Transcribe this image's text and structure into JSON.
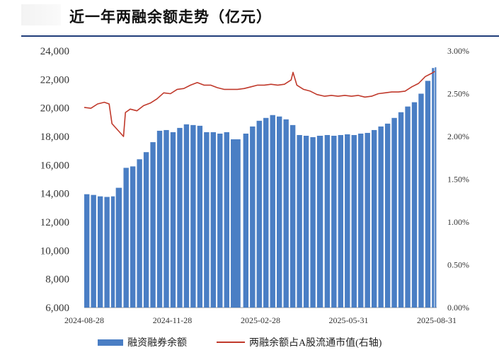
{
  "header": {
    "title": "近一年两融余额走势（亿元）"
  },
  "colors": {
    "bars": "#4a7ec4",
    "line": "#c0392b",
    "rule": "#1f3d7a"
  },
  "chart_data": {
    "type": "bar+line",
    "x_start": "2024-08-28",
    "x_end": "2025-08-31",
    "x_tick_labels": [
      "2024-08-28",
      "2024-11-28",
      "2025-02-28",
      "2025-05-31",
      "2025-08-31"
    ],
    "y_left": {
      "range": [
        6000,
        24000
      ],
      "tick_labels": [
        "6,000",
        "8,000",
        "10,000",
        "12,000",
        "14,000",
        "16,000",
        "18,000",
        "20,000",
        "22,000",
        "24,000"
      ]
    },
    "y_right": {
      "range": [
        0,
        3.0
      ],
      "unit": "%",
      "tick_labels": [
        "0.00%",
        "0.50%",
        "1.00%",
        "1.50%",
        "2.00%",
        "2.50%",
        "3.00%"
      ]
    },
    "series": [
      {
        "name": "融资融券余额",
        "type": "bar",
        "axis": "left",
        "points": [
          [
            "2024-08-28",
            13950
          ],
          [
            "2024-09-04",
            13900
          ],
          [
            "2024-09-11",
            13800
          ],
          [
            "2024-09-18",
            13760
          ],
          [
            "2024-09-25",
            13800
          ],
          [
            "2024-09-30",
            14400
          ],
          [
            "2024-10-08",
            15800
          ],
          [
            "2024-10-15",
            15900
          ],
          [
            "2024-10-22",
            16400
          ],
          [
            "2024-10-29",
            16900
          ],
          [
            "2024-11-05",
            17600
          ],
          [
            "2024-11-12",
            18400
          ],
          [
            "2024-11-19",
            18450
          ],
          [
            "2024-11-26",
            18300
          ],
          [
            "2024-12-03",
            18600
          ],
          [
            "2024-12-10",
            18850
          ],
          [
            "2024-12-17",
            18800
          ],
          [
            "2024-12-24",
            18750
          ],
          [
            "2024-12-31",
            18300
          ],
          [
            "2025-01-07",
            18300
          ],
          [
            "2025-01-14",
            18200
          ],
          [
            "2025-01-21",
            18300
          ],
          [
            "2025-01-28",
            17800
          ],
          [
            "2025-02-10",
            18200
          ],
          [
            "2025-02-17",
            18700
          ],
          [
            "2025-02-24",
            19100
          ],
          [
            "2025-03-03",
            19300
          ],
          [
            "2025-03-10",
            19500
          ],
          [
            "2025-03-17",
            19400
          ],
          [
            "2025-03-24",
            19200
          ],
          [
            "2025-03-31",
            18800
          ],
          [
            "2025-04-07",
            18100
          ],
          [
            "2025-04-14",
            18050
          ],
          [
            "2025-04-21",
            17950
          ],
          [
            "2025-04-28",
            18050
          ],
          [
            "2025-05-06",
            18100
          ],
          [
            "2025-05-13",
            18050
          ],
          [
            "2025-05-20",
            18100
          ],
          [
            "2025-05-27",
            18150
          ],
          [
            "2025-06-03",
            18100
          ],
          [
            "2025-06-10",
            18200
          ],
          [
            "2025-06-17",
            18250
          ],
          [
            "2025-06-24",
            18450
          ],
          [
            "2025-07-01",
            18700
          ],
          [
            "2025-07-08",
            18900
          ],
          [
            "2025-07-15",
            19300
          ],
          [
            "2025-07-22",
            19700
          ],
          [
            "2025-07-29",
            20100
          ],
          [
            "2025-08-05",
            20400
          ],
          [
            "2025-08-12",
            21000
          ],
          [
            "2025-08-19",
            21900
          ],
          [
            "2025-08-26",
            22800
          ],
          [
            "2025-08-29",
            22850
          ]
        ]
      },
      {
        "name": "两融余额占A股流通市值(右轴)",
        "type": "line",
        "axis": "right",
        "points": [
          [
            "2024-08-28",
            2.34
          ],
          [
            "2024-09-04",
            2.33
          ],
          [
            "2024-09-11",
            2.38
          ],
          [
            "2024-09-18",
            2.4
          ],
          [
            "2024-09-23",
            2.38
          ],
          [
            "2024-09-26",
            2.15
          ],
          [
            "2024-10-08",
            2.0
          ],
          [
            "2024-10-10",
            2.28
          ],
          [
            "2024-10-15",
            2.32
          ],
          [
            "2024-10-22",
            2.3
          ],
          [
            "2024-10-29",
            2.36
          ],
          [
            "2024-11-05",
            2.39
          ],
          [
            "2024-11-12",
            2.44
          ],
          [
            "2024-11-19",
            2.51
          ],
          [
            "2024-11-26",
            2.5
          ],
          [
            "2024-12-03",
            2.55
          ],
          [
            "2024-12-10",
            2.56
          ],
          [
            "2024-12-17",
            2.6
          ],
          [
            "2024-12-24",
            2.63
          ],
          [
            "2024-12-31",
            2.6
          ],
          [
            "2025-01-07",
            2.6
          ],
          [
            "2025-01-14",
            2.57
          ],
          [
            "2025-01-21",
            2.55
          ],
          [
            "2025-02-04",
            2.55
          ],
          [
            "2025-02-11",
            2.56
          ],
          [
            "2025-02-18",
            2.58
          ],
          [
            "2025-02-25",
            2.6
          ],
          [
            "2025-03-04",
            2.6
          ],
          [
            "2025-03-11",
            2.61
          ],
          [
            "2025-03-18",
            2.6
          ],
          [
            "2025-03-25",
            2.61
          ],
          [
            "2025-04-01",
            2.66
          ],
          [
            "2025-04-03",
            2.75
          ],
          [
            "2025-04-07",
            2.6
          ],
          [
            "2025-04-14",
            2.55
          ],
          [
            "2025-04-21",
            2.53
          ],
          [
            "2025-04-28",
            2.49
          ],
          [
            "2025-05-06",
            2.47
          ],
          [
            "2025-05-13",
            2.48
          ],
          [
            "2025-05-20",
            2.47
          ],
          [
            "2025-05-27",
            2.48
          ],
          [
            "2025-06-03",
            2.47
          ],
          [
            "2025-06-10",
            2.48
          ],
          [
            "2025-06-17",
            2.46
          ],
          [
            "2025-06-24",
            2.47
          ],
          [
            "2025-07-01",
            2.5
          ],
          [
            "2025-07-08",
            2.51
          ],
          [
            "2025-07-15",
            2.52
          ],
          [
            "2025-07-22",
            2.52
          ],
          [
            "2025-07-29",
            2.53
          ],
          [
            "2025-08-05",
            2.58
          ],
          [
            "2025-08-12",
            2.62
          ],
          [
            "2025-08-19",
            2.7
          ],
          [
            "2025-08-26",
            2.74
          ],
          [
            "2025-08-29",
            2.76
          ]
        ]
      }
    ]
  }
}
